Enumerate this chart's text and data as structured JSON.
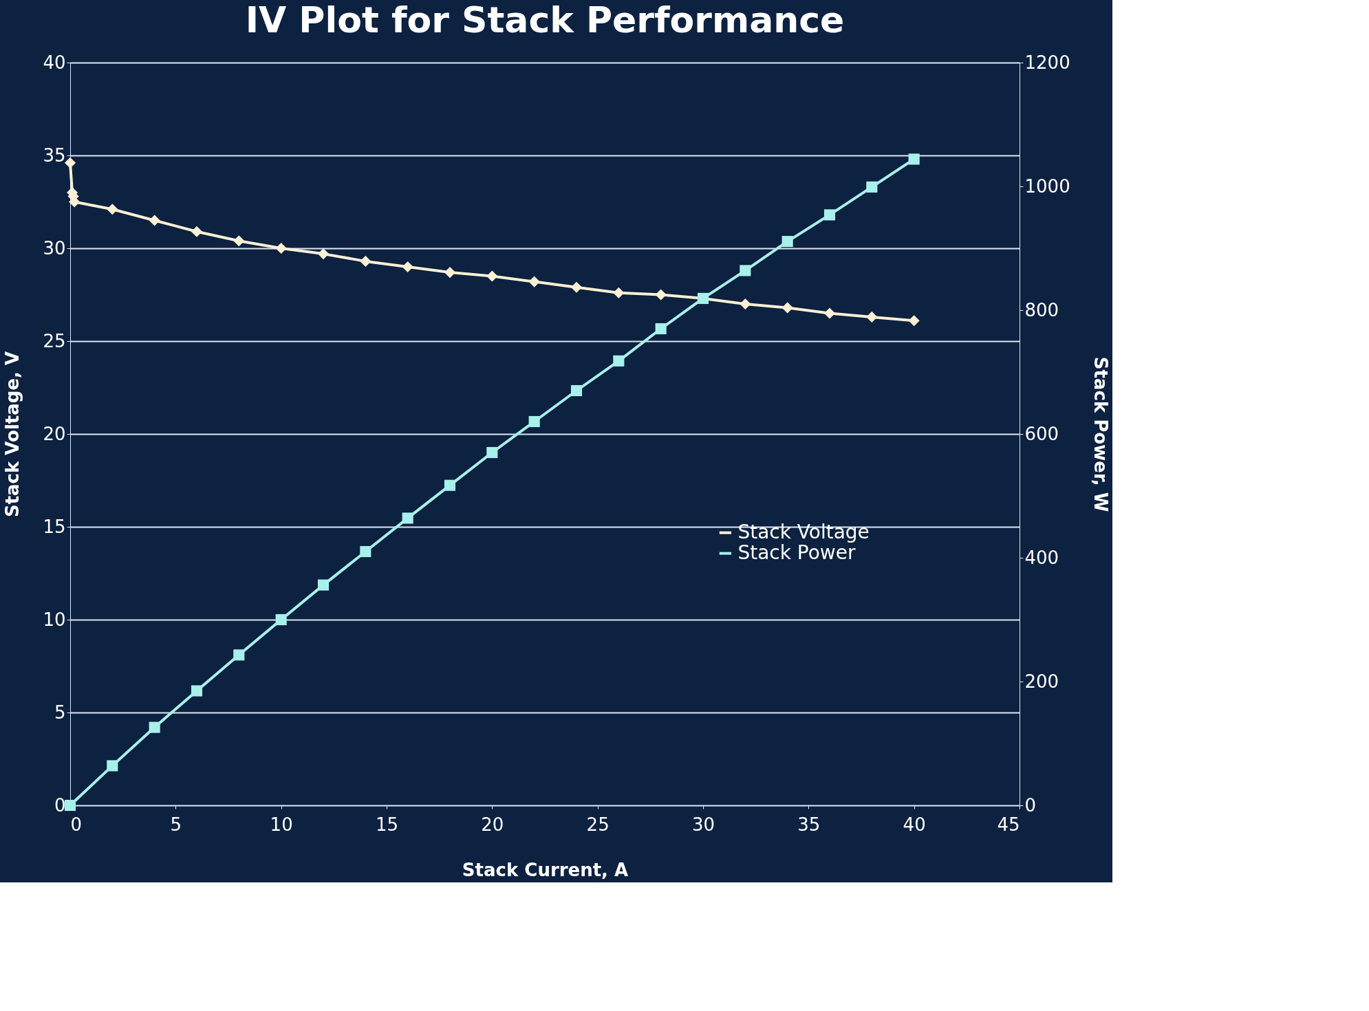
{
  "chart_data": {
    "type": "line",
    "title": "IV Plot for Stack Performance",
    "xlabel": "Stack Current, A",
    "ylabel": "Stack Voltage, V",
    "y2label": "Stack Power, W",
    "series": [
      {
        "name": "Stack Voltage",
        "color": "#fdf0d5",
        "marker": "diamond",
        "x": [
          0,
          0.1,
          0.15,
          0.2,
          2,
          4,
          6,
          8,
          10,
          12,
          14,
          16,
          18,
          20,
          22,
          24,
          26,
          28,
          30,
          32,
          34,
          36,
          38,
          40
        ],
        "values": [
          34.6,
          33.0,
          32.8,
          32.5,
          32.1,
          31.5,
          30.9,
          30.4,
          30.0,
          29.7,
          29.3,
          29.0,
          28.7,
          28.5,
          28.2,
          27.9,
          27.6,
          27.5,
          27.3,
          27.0,
          26.8,
          26.5,
          26.3,
          26.1
        ]
      },
      {
        "name": "Stack Power",
        "color": "#a8f0ec",
        "marker": "square",
        "axis": "y2",
        "x": [
          0,
          2,
          4,
          6,
          8,
          10,
          12,
          14,
          16,
          18,
          20,
          22,
          24,
          26,
          28,
          30,
          32,
          34,
          36,
          38,
          40
        ],
        "values": [
          0,
          64,
          126,
          185,
          243,
          300,
          356,
          410,
          464,
          517,
          570,
          620,
          670,
          718,
          770,
          819,
          864,
          911,
          954,
          999,
          1044
        ]
      }
    ],
    "xlim": [
      0,
      45
    ],
    "xticks": [
      0,
      5,
      10,
      15,
      20,
      25,
      30,
      35,
      40,
      45
    ],
    "ylim": [
      0,
      40
    ],
    "yticks": [
      0,
      5,
      10,
      15,
      20,
      25,
      30,
      35,
      40
    ],
    "y2lim": [
      0,
      1200
    ],
    "y2ticks": [
      0,
      200,
      400,
      600,
      800,
      1000,
      1200
    ],
    "grid": "y",
    "legend": "right",
    "line_style": "solid"
  }
}
